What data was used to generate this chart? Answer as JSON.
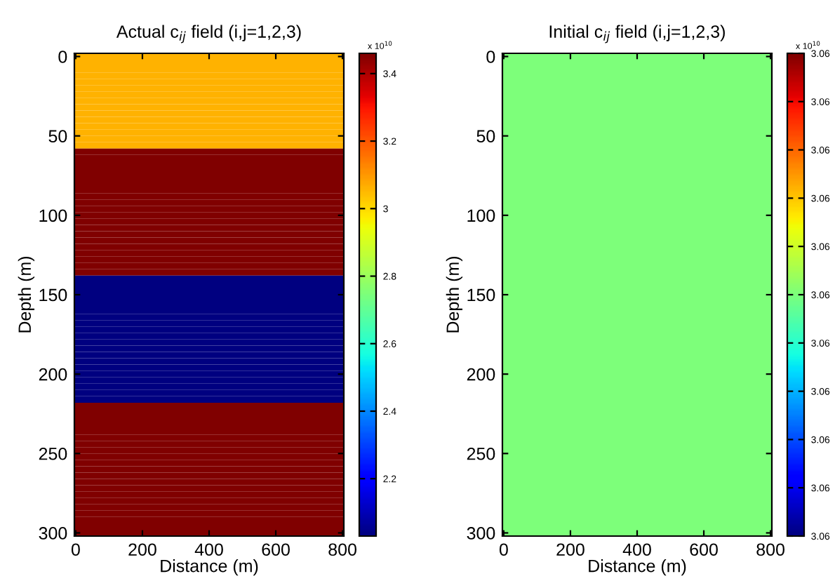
{
  "chart_data": [
    {
      "type": "heatmap",
      "title": "Actual c$_{ij}$ field (i,j=1,2,3)",
      "xlabel": "Distance (m)",
      "ylabel": "Depth (m)",
      "clabel": "x 10$^{10}$",
      "y": [
        0,
        4,
        8,
        12,
        16,
        20,
        24,
        28,
        32,
        36,
        40,
        44,
        48,
        52,
        56,
        60,
        64,
        68,
        72,
        76,
        80,
        84,
        88,
        92,
        96,
        100,
        104,
        108,
        112,
        116,
        120,
        124,
        128,
        132,
        136,
        140,
        144,
        148,
        152,
        156,
        160,
        164,
        168,
        172,
        176,
        180,
        184,
        188,
        192,
        196,
        200,
        204,
        208,
        212,
        216,
        220,
        224,
        228,
        232,
        236,
        240,
        244,
        248,
        252,
        256,
        260,
        264,
        268,
        272,
        276,
        280,
        284,
        288,
        292,
        296,
        300
      ],
      "cells": [
        [
          3.06
        ],
        [
          3.06
        ],
        [
          3.06
        ],
        [
          3.06
        ],
        [
          3.06
        ],
        [
          3.06
        ],
        [
          3.06
        ],
        [
          3.06
        ],
        [
          3.06
        ],
        [
          3.06
        ],
        [
          3.06
        ],
        [
          3.06
        ],
        [
          3.06
        ],
        [
          3.06
        ],
        [
          3.06
        ],
        [
          3.46
        ],
        [
          3.46
        ],
        [
          3.46
        ],
        [
          3.46
        ],
        [
          3.46
        ],
        [
          3.46
        ],
        [
          3.46
        ],
        [
          3.46
        ],
        [
          3.46
        ],
        [
          3.46
        ],
        [
          3.46
        ],
        [
          3.46
        ],
        [
          3.46
        ],
        [
          3.46
        ],
        [
          3.46
        ],
        [
          3.46
        ],
        [
          3.46
        ],
        [
          3.46
        ],
        [
          3.46
        ],
        [
          3.46
        ],
        [
          2.03
        ],
        [
          2.03
        ],
        [
          2.03
        ],
        [
          2.03
        ],
        [
          2.03
        ],
        [
          2.03
        ],
        [
          2.03
        ],
        [
          2.03
        ],
        [
          2.03
        ],
        [
          2.03
        ],
        [
          2.03
        ],
        [
          2.03
        ],
        [
          2.03
        ],
        [
          2.03
        ],
        [
          2.03
        ],
        [
          2.03
        ],
        [
          2.03
        ],
        [
          2.03
        ],
        [
          2.03
        ],
        [
          2.03
        ],
        [
          3.46
        ],
        [
          3.46
        ],
        [
          3.46
        ],
        [
          3.46
        ],
        [
          3.46
        ],
        [
          3.46
        ],
        [
          3.46
        ],
        [
          3.46
        ],
        [
          3.46
        ],
        [
          3.46
        ],
        [
          3.46
        ],
        [
          3.46
        ],
        [
          3.46
        ],
        [
          3.46
        ],
        [
          3.46
        ],
        [
          3.46
        ],
        [
          3.46
        ],
        [
          3.46
        ],
        [
          3.46
        ],
        [
          3.46
        ],
        [
          3.46
        ]
      ],
      "xlim": [
        -4,
        804
      ],
      "ylim": [
        302,
        -2
      ],
      "xticks": [
        0,
        200,
        400,
        600,
        800
      ],
      "yticks": [
        0,
        50,
        100,
        150,
        200,
        250,
        300
      ],
      "clim": [
        2.03,
        3.46
      ],
      "cticks": [
        2.2,
        2.4,
        2.6,
        2.8,
        {
          "value": 3.0,
          "label": "3"
        },
        3.2,
        3.4
      ]
    },
    {
      "type": "heatmap",
      "title": "Initial c$_{ij}$ field (i,j=1,2,3)",
      "xlabel": "Distance (m)",
      "ylabel": "Depth (m)",
      "clabel": "x 10$^{10}$",
      "cells": [
        [
          3.06
        ]
      ],
      "xlim": [
        -4,
        804
      ],
      "ylim": [
        302,
        -2
      ],
      "xticks": [
        0,
        200,
        400,
        600,
        800
      ],
      "yticks": [
        0,
        50,
        100,
        150,
        200,
        250,
        300
      ],
      "clim": [
        3.0595,
        3.0605
      ],
      "cticks": [
        {
          "value": 3.0595,
          "label": "3.06"
        },
        {
          "value": 3.0596,
          "label": "3.06"
        },
        {
          "value": 3.0597,
          "label": "3.06"
        },
        {
          "value": 3.0598,
          "label": "3.06"
        },
        {
          "value": 3.0599,
          "label": "3.06"
        },
        {
          "value": 3.06,
          "label": "3.06"
        },
        {
          "value": 3.0601,
          "label": "3.06"
        },
        {
          "value": 3.0602,
          "label": "3.06"
        },
        {
          "value": 3.0603,
          "label": "3.06"
        },
        {
          "value": 3.0604,
          "label": "3.06"
        },
        {
          "value": 3.0605,
          "label": "3.06"
        }
      ]
    }
  ]
}
